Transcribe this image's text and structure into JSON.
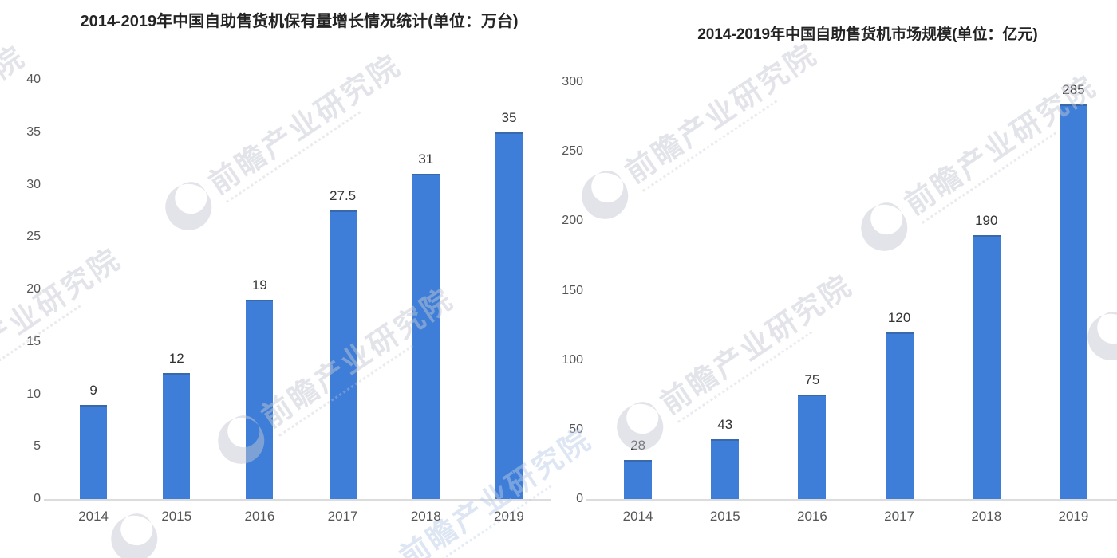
{
  "page": {
    "background": "#ffffff"
  },
  "watermark": {
    "brand": "前瞻产业研究院"
  },
  "chart_data": [
    {
      "type": "bar",
      "title": "2014-2019年中国自助售货机保有量增长情况统计(单位：万台)",
      "unit": "万台",
      "categories": [
        "2014",
        "2015",
        "2016",
        "2017",
        "2018",
        "2019"
      ],
      "values": [
        9,
        12,
        19,
        27.5,
        31,
        35
      ],
      "value_labels": [
        "9",
        "12",
        "19",
        "27.5",
        "31",
        "35"
      ],
      "ylim": [
        0,
        40
      ],
      "yticks": [
        0,
        5,
        10,
        15,
        20,
        25,
        30,
        35,
        40
      ],
      "xlabel": "",
      "ylabel": "",
      "grid": false,
      "legend": "none",
      "bar_color": "#3e7ed8"
    },
    {
      "type": "bar",
      "title": "2014-2019年中国自助售货机市场规模(单位：亿元)",
      "unit": "亿元",
      "categories": [
        "2014",
        "2015",
        "2016",
        "2017",
        "2018",
        "2019"
      ],
      "values": [
        28,
        43,
        75,
        120,
        190,
        285
      ],
      "value_labels": [
        "28",
        "43",
        "75",
        "120",
        "190",
        "285"
      ],
      "ylim": [
        0,
        300
      ],
      "yticks": [
        0,
        50,
        100,
        150,
        200,
        250,
        300
      ],
      "xlabel": "",
      "ylabel": "",
      "grid": false,
      "legend": "none",
      "bar_color": "#3e7ed8"
    }
  ]
}
